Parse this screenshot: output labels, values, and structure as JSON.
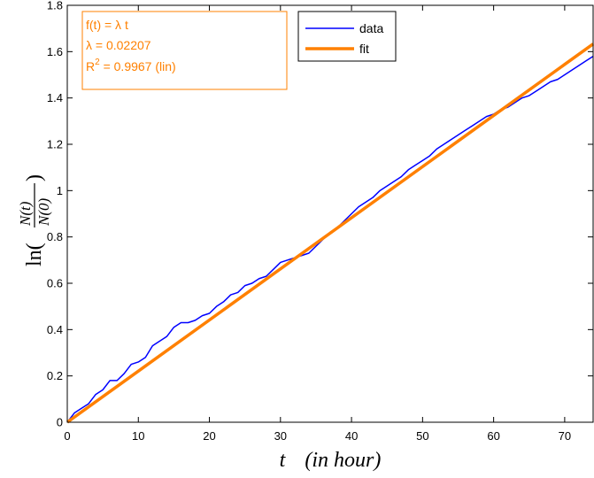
{
  "chart_data": {
    "type": "line",
    "xlabel_var": "t",
    "xlabel_unit": "(in hour)",
    "ylabel": "ln(N(t)/N(0))",
    "ylabel_num": "N(t)",
    "ylabel_den": "N(0)",
    "xlim": [
      0,
      74
    ],
    "ylim": [
      0,
      1.8
    ],
    "xticks": [
      0,
      10,
      20,
      30,
      40,
      50,
      60,
      70
    ],
    "yticks": [
      0,
      0.2,
      0.4,
      0.6,
      0.8,
      1,
      1.2,
      1.4,
      1.6,
      1.8
    ],
    "grid": false,
    "legend_position": "top-center",
    "annotation": {
      "line1": "f(t) = λ t",
      "line2": "λ = 0.02207",
      "line3_r": "R",
      "line3_sup": "2",
      "line3_rest": " = 0.9967  (lin)"
    },
    "series": [
      {
        "name": "data",
        "color": "#0000ff",
        "x": [
          0,
          1,
          2,
          3,
          4,
          5,
          6,
          7,
          8,
          9,
          10,
          11,
          12,
          13,
          14,
          15,
          16,
          17,
          18,
          19,
          20,
          21,
          22,
          23,
          24,
          25,
          26,
          27,
          28,
          29,
          30,
          31,
          32,
          33,
          34,
          35,
          36,
          37,
          38,
          39,
          40,
          41,
          42,
          43,
          44,
          45,
          46,
          47,
          48,
          49,
          50,
          51,
          52,
          53,
          54,
          55,
          56,
          57,
          58,
          59,
          60,
          61,
          62,
          63,
          64,
          65,
          66,
          67,
          68,
          69,
          70,
          71,
          72,
          73,
          74
        ],
        "y": [
          0,
          0.04,
          0.06,
          0.08,
          0.12,
          0.14,
          0.18,
          0.18,
          0.21,
          0.25,
          0.26,
          0.28,
          0.33,
          0.35,
          0.37,
          0.41,
          0.43,
          0.43,
          0.44,
          0.46,
          0.47,
          0.5,
          0.52,
          0.55,
          0.56,
          0.59,
          0.6,
          0.62,
          0.63,
          0.66,
          0.69,
          0.7,
          0.71,
          0.72,
          0.73,
          0.76,
          0.79,
          0.82,
          0.84,
          0.87,
          0.9,
          0.93,
          0.95,
          0.97,
          1.0,
          1.02,
          1.04,
          1.06,
          1.09,
          1.11,
          1.13,
          1.15,
          1.18,
          1.2,
          1.22,
          1.24,
          1.26,
          1.28,
          1.3,
          1.32,
          1.33,
          1.35,
          1.36,
          1.38,
          1.4,
          1.41,
          1.43,
          1.45,
          1.47,
          1.48,
          1.5,
          1.52,
          1.54,
          1.56,
          1.58
        ]
      },
      {
        "name": "fit",
        "color": "#ff8000",
        "x": [
          0,
          74
        ],
        "y": [
          0,
          1.6332
        ]
      }
    ]
  }
}
